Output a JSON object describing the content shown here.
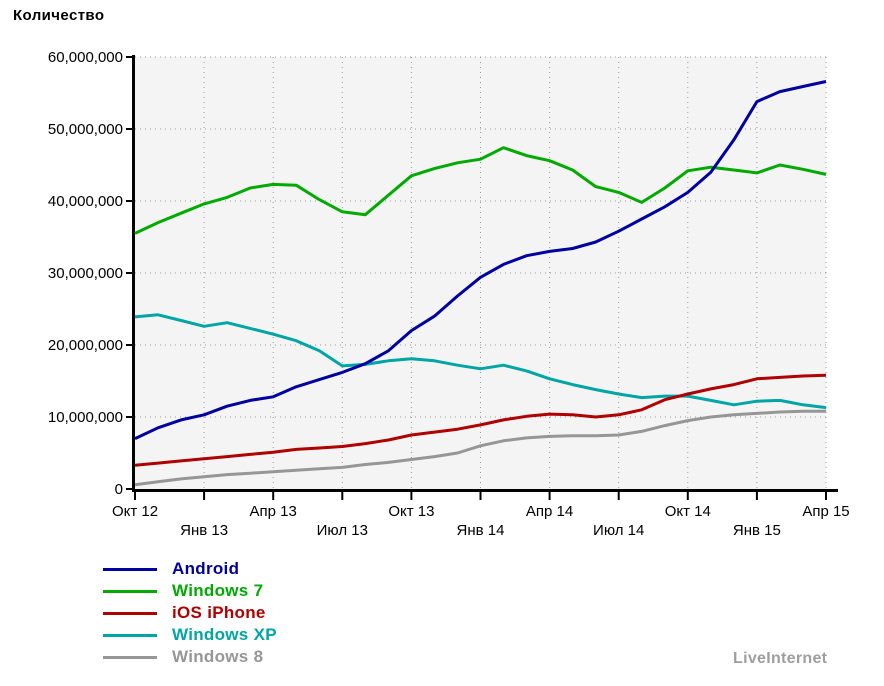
{
  "chart_data": {
    "type": "line",
    "title": "Количество",
    "watermark": "LiveInternet",
    "grid_style": "dotted",
    "grid_color": "#999999",
    "plot_bg": "#f4f4f4",
    "axis_color": "#000000",
    "legend_position": "bottom-left",
    "ylim": [
      0,
      60000000
    ],
    "x_range": [
      "Окт 12",
      "Апр 15"
    ],
    "x_tick_labels": [
      "Окт 12",
      "Янв 13",
      "Апр 13",
      "Июл 13",
      "Окт 13",
      "Янв 14",
      "Апр 14",
      "Июл 14",
      "Окт 14",
      "Янв 15",
      "Апр 15"
    ],
    "x_tick_every_months": 3,
    "y_ticks": [
      {
        "value": 0,
        "label": "0"
      },
      {
        "value": 10000000,
        "label": "10,000,000"
      },
      {
        "value": 20000000,
        "label": "20,000,000"
      },
      {
        "value": 30000000,
        "label": "30,000,000"
      },
      {
        "value": 40000000,
        "label": "40,000,000"
      },
      {
        "value": 50000000,
        "label": "50,000,000"
      },
      {
        "value": 60000000,
        "label": "60,000,000"
      }
    ],
    "series": [
      {
        "name": "Android",
        "color": "#0000A0",
        "values": [
          7000000,
          8500000,
          9600000,
          10300000,
          11500000,
          12300000,
          12800000,
          14200000,
          15200000,
          16200000,
          17400000,
          19200000,
          22000000,
          24000000,
          26800000,
          29400000,
          31200000,
          32400000,
          33000000,
          33400000,
          34300000,
          35800000,
          37500000,
          39200000,
          41200000,
          44000000,
          48500000,
          53800000,
          55200000,
          55900000,
          56600000
        ]
      },
      {
        "name": "Windows 7",
        "color": "#00AA00",
        "values": [
          35500000,
          37000000,
          38300000,
          39600000,
          40500000,
          41800000,
          42300000,
          42200000,
          40200000,
          38500000,
          38100000,
          40800000,
          43500000,
          44500000,
          45300000,
          45800000,
          47400000,
          46300000,
          45600000,
          44300000,
          42000000,
          41200000,
          39800000,
          41800000,
          44200000,
          44700000,
          44300000,
          43900000,
          45000000,
          44400000,
          43700000
        ]
      },
      {
        "name": "iOS iPhone",
        "color": "#B00000",
        "values": [
          3300000,
          3600000,
          3900000,
          4200000,
          4500000,
          4800000,
          5100000,
          5500000,
          5700000,
          5900000,
          6300000,
          6800000,
          7500000,
          7900000,
          8300000,
          8900000,
          9600000,
          10100000,
          10400000,
          10300000,
          10000000,
          10300000,
          11000000,
          12400000,
          13200000,
          13900000,
          14500000,
          15300000,
          15500000,
          15700000,
          15800000
        ]
      },
      {
        "name": "Windows XP",
        "color": "#00A5A5",
        "values": [
          23900000,
          24200000,
          23400000,
          22600000,
          23100000,
          22300000,
          21500000,
          20600000,
          19200000,
          17100000,
          17300000,
          17800000,
          18100000,
          17800000,
          17200000,
          16700000,
          17200000,
          16400000,
          15300000,
          14500000,
          13800000,
          13200000,
          12700000,
          12900000,
          12900000,
          12300000,
          11700000,
          12200000,
          12300000,
          11700000,
          11300000
        ]
      },
      {
        "name": "Windows 8",
        "color": "#969696",
        "values": [
          600000,
          1000000,
          1400000,
          1700000,
          2000000,
          2200000,
          2400000,
          2600000,
          2800000,
          3000000,
          3400000,
          3700000,
          4100000,
          4500000,
          5000000,
          6000000,
          6700000,
          7100000,
          7300000,
          7400000,
          7400000,
          7500000,
          8000000,
          8800000,
          9500000,
          10000000,
          10300000,
          10500000,
          10700000,
          10800000,
          10800000
        ]
      }
    ]
  }
}
